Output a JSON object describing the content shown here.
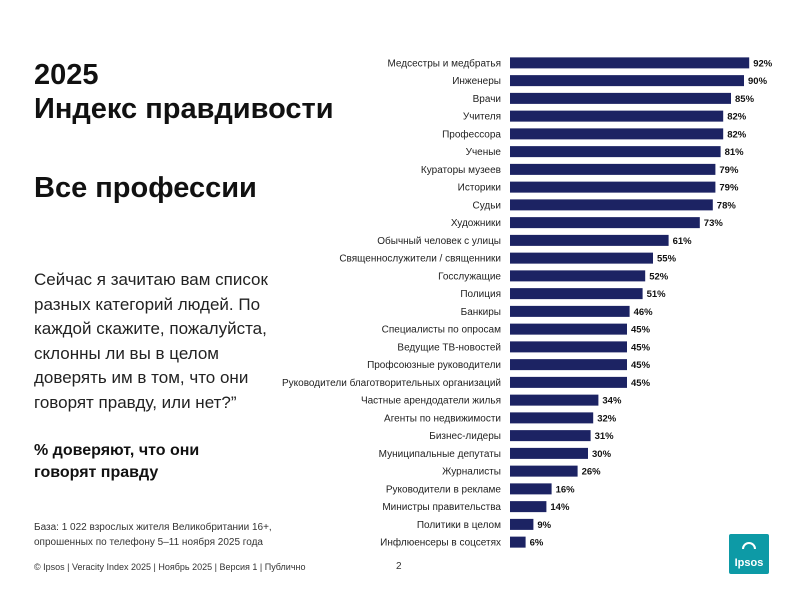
{
  "slide": {
    "year": "2025",
    "title": "Индекс правдивости",
    "subtitle": "Все профессии",
    "question": "Сейчас я зачитаю вам список разных категорий людей. По каждой скажите, пожалуйста, склонны ли вы в целом доверять им в том, что они говорят правду, или нет?”",
    "measure_label": "% доверяют, что они говорят правду",
    "base_note": "База: 1 022 взрослых жителя Великобритании 16+, опрошенных по телефону 5–11 ноября 2025 года",
    "footer": "© Ipsos | Veracity Index 2025 | Ноябрь 2025 | Версия 1 | Публично",
    "page_number": "2",
    "logo_text": "Ipsos"
  },
  "colors": {
    "bar": "#1c2363",
    "logo": "#0d9aa6"
  },
  "chart_data": {
    "type": "bar",
    "orientation": "horizontal",
    "title": "",
    "xlabel": "",
    "ylabel": "",
    "xlim": [
      0,
      100
    ],
    "value_suffix": "%",
    "grid": false,
    "legend": "none",
    "categories": [
      "Медсестры и медбратья",
      "Инженеры",
      "Врачи",
      "Учителя",
      "Профессора",
      "Ученые",
      "Кураторы музеев",
      "Историки",
      "Судьи",
      "Художники",
      "Обычный человек с улицы",
      "Священнослужители / священники",
      "Госслужащие",
      "Полиция",
      "Банкиры",
      "Специалисты по опросам",
      "Ведущие ТВ-новостей",
      "Профсоюзные руководители",
      "Руководители благотворительных организаций",
      "Частные арендодатели жилья",
      "Агенты по недвижимости",
      "Бизнес-лидеры",
      "Муниципальные депутаты",
      "Журналисты",
      "Руководители в рекламе",
      "Министры правительства",
      "Политики в целом",
      "Инфлюенсеры в соцсетях"
    ],
    "values": [
      92,
      90,
      85,
      82,
      82,
      81,
      79,
      79,
      78,
      73,
      61,
      55,
      52,
      51,
      46,
      45,
      45,
      45,
      45,
      34,
      32,
      31,
      30,
      26,
      16,
      14,
      9,
      6
    ]
  }
}
